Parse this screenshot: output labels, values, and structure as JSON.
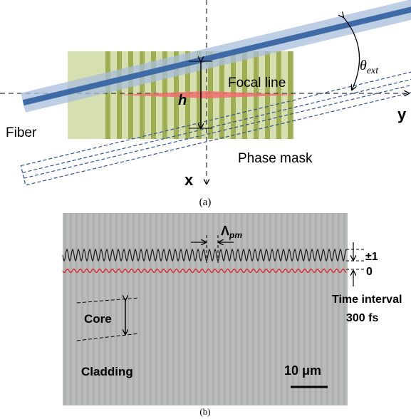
{
  "panel_a": {
    "theta": "θ",
    "theta_sub": "ext",
    "focal_line": "Focal line",
    "h": "h",
    "fiber": "Fiber",
    "y_axis": "y",
    "phase_mask": "Phase mask",
    "x_axis": "x",
    "caption": "(a)"
  },
  "panel_b": {
    "lambda": "Λ",
    "lambda_sub": "pm",
    "order_1": "±1",
    "order_0": "0",
    "time_interval": "Time interval",
    "time_value": "300 fs",
    "core": "Core",
    "cladding": "Cladding",
    "scale": "10 μm",
    "caption": "(b)"
  }
}
